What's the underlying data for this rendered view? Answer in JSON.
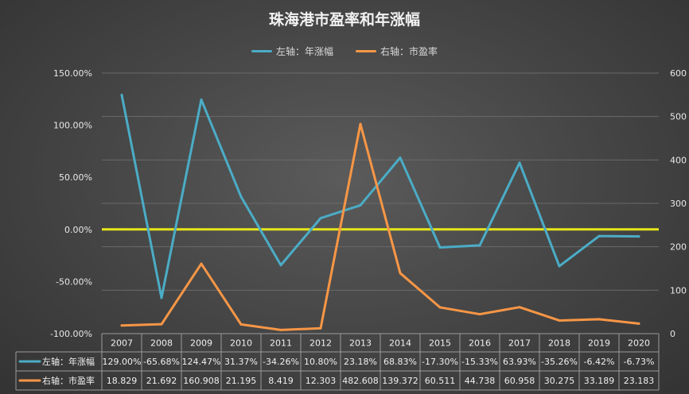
{
  "chart_data": {
    "type": "line",
    "title": "珠海港市盈率和年涨幅",
    "categories": [
      "2007",
      "2008",
      "2009",
      "2010",
      "2011",
      "2012",
      "2013",
      "2014",
      "2015",
      "2016",
      "2017",
      "2018",
      "2019",
      "2020"
    ],
    "series": [
      {
        "name": "左轴：年涨幅",
        "axis": "left",
        "color": "#4bacc6",
        "values": [
          129.0,
          -65.68,
          124.47,
          31.37,
          -34.26,
          10.8,
          23.18,
          68.83,
          -17.3,
          -15.33,
          63.93,
          -35.26,
          -6.42,
          -6.73
        ],
        "labels": [
          "129.00%",
          "-65.68%",
          "124.47%",
          "31.37%",
          "-34.26%",
          "10.80%",
          "23.18%",
          "68.83%",
          "-17.30%",
          "-15.33%",
          "63.93%",
          "-35.26%",
          "-6.42%",
          "-6.73%"
        ]
      },
      {
        "name": "右轴：市盈率",
        "axis": "right",
        "color": "#f79646",
        "values": [
          18.829,
          21.692,
          160.908,
          21.195,
          8.419,
          12.303,
          482.608,
          139.372,
          60.511,
          44.738,
          60.958,
          30.275,
          33.189,
          23.183
        ],
        "labels": [
          "18.829",
          "21.692",
          "160.908",
          "21.195",
          "8.419",
          "12.303",
          "482.608",
          "139.372",
          "60.511",
          "44.738",
          "60.958",
          "30.275",
          "33.189",
          "23.183"
        ]
      }
    ],
    "y_left": {
      "min": -100,
      "max": 150,
      "ticks": [
        150,
        100,
        50,
        0,
        -50,
        -100
      ],
      "tick_labels": [
        "150.00%",
        "100.00%",
        "50.00%",
        "0.00%",
        "-50.00%",
        "-100.00%"
      ]
    },
    "y_right": {
      "min": 0,
      "max": 600,
      "ticks": [
        600,
        500,
        400,
        300,
        200,
        100,
        0
      ],
      "tick_labels": [
        "600",
        "500",
        "400",
        "300",
        "200",
        "100",
        "0"
      ]
    },
    "reference_line": {
      "value": 0,
      "axis": "left",
      "color": "#e6e619"
    },
    "grid": true,
    "legend_position": "top",
    "data_table": true
  }
}
